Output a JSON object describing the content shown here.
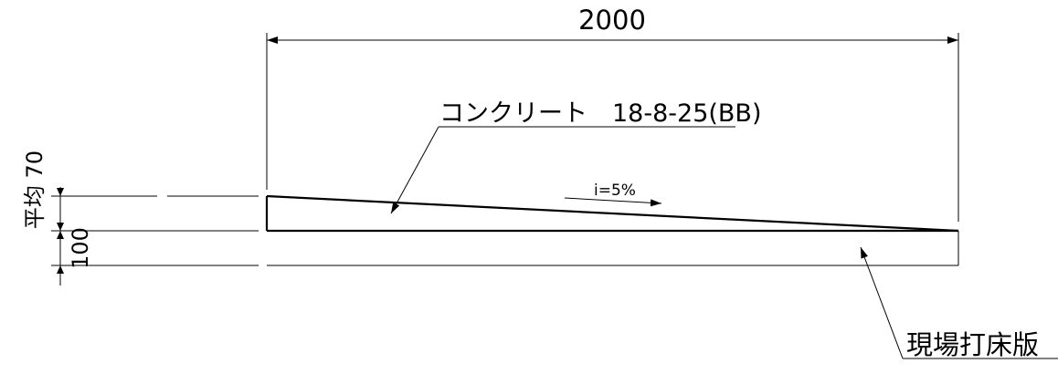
{
  "dimensions": {
    "width_label": "2000",
    "avg_label": "平均 70",
    "thickness_label": "100"
  },
  "labels": {
    "concrete": "コンクリート　18-8-25(BB)",
    "slope": "i=5%",
    "slab": "現場打床版"
  }
}
